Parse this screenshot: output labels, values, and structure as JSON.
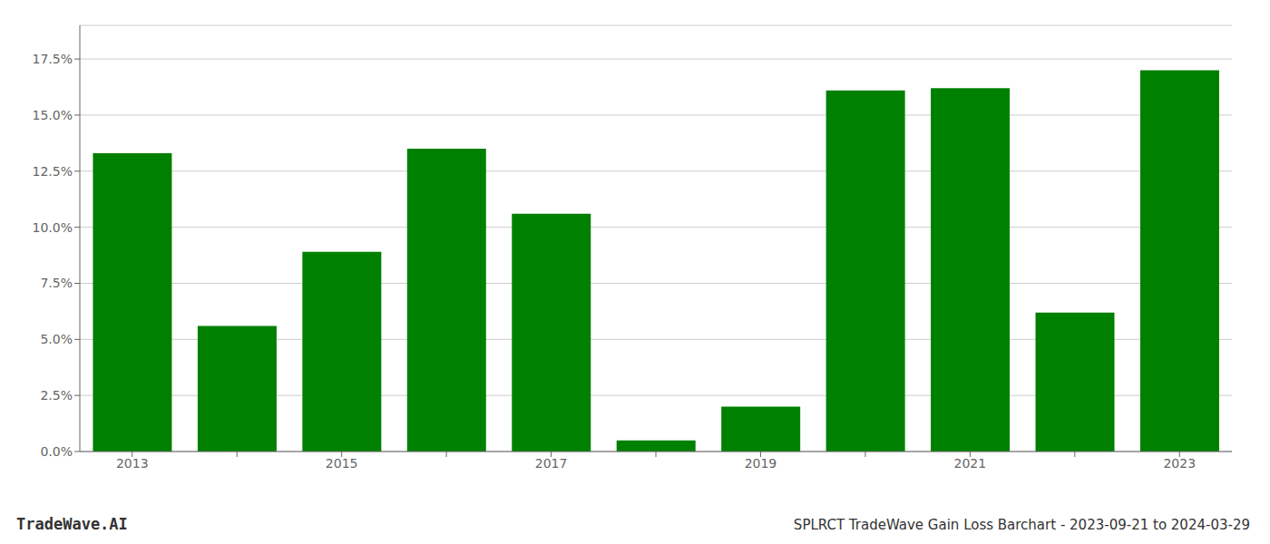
{
  "chart_data": {
    "type": "bar",
    "title": "SPLRCT TradeWave Gain Loss Barchart - 2023-09-21 to 2024-03-29",
    "annotations": [
      "TradeWave.AI"
    ],
    "categories": [
      "2013",
      null,
      "2015",
      null,
      "2017",
      null,
      "2019",
      null,
      "2021",
      null,
      "2023"
    ],
    "values": [
      0.133,
      0.056,
      0.089,
      0.135,
      0.106,
      0.005,
      0.02,
      0.161,
      0.162,
      0.062,
      0.17
    ],
    "color": "#008000",
    "ylim": [
      0,
      0.19
    ],
    "yticks": [
      {
        "value": 0.0,
        "label": "0.0%"
      },
      {
        "value": 0.025,
        "label": "2.5%"
      },
      {
        "value": 0.05,
        "label": "5.0%"
      },
      {
        "value": 0.075,
        "label": "7.5%"
      },
      {
        "value": 0.1,
        "label": "10.0%"
      },
      {
        "value": 0.125,
        "label": "12.5%"
      },
      {
        "value": 0.15,
        "label": "15.0%"
      },
      {
        "value": 0.175,
        "label": "17.5%"
      }
    ],
    "grid": true
  }
}
